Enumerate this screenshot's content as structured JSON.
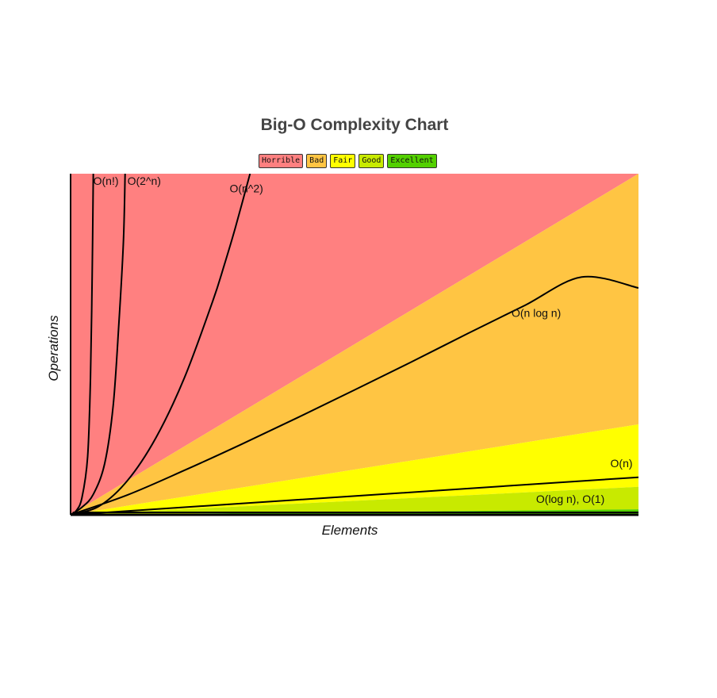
{
  "chart_data": {
    "type": "area",
    "title": "Big-O Complexity Chart",
    "xlabel": "Elements",
    "ylabel": "Operations",
    "xlim": [
      0,
      100
    ],
    "ylim": [
      0,
      1000
    ],
    "legend": {
      "placement": "top-center",
      "items": [
        {
          "name": "Horrible",
          "color": "#ff8080"
        },
        {
          "name": "Bad",
          "color": "#ffc543"
        },
        {
          "name": "Fair",
          "color": "#ffff00"
        },
        {
          "name": "Good",
          "color": "#c8ea00"
        },
        {
          "name": "Excellent",
          "color": "#53d000"
        }
      ]
    },
    "regions": [
      {
        "name": "Horrible",
        "color": "#ff8080",
        "top": [
          [
            0,
            0
          ],
          [
            0,
            1000
          ],
          [
            100,
            1000
          ]
        ],
        "bottom": [
          [
            0,
            0
          ],
          [
            100,
            1000
          ]
        ]
      },
      {
        "name": "Bad",
        "color": "#ffc543",
        "top": [
          [
            0,
            0
          ],
          [
            100,
            1000
          ]
        ],
        "bottom": [
          [
            0,
            0
          ],
          [
            100,
            265
          ]
        ]
      },
      {
        "name": "Fair",
        "color": "#ffff00",
        "top": [
          [
            0,
            0
          ],
          [
            100,
            265
          ]
        ],
        "bottom": [
          [
            0,
            0
          ],
          [
            100,
            82
          ]
        ]
      },
      {
        "name": "Good",
        "color": "#c8ea00",
        "top": [
          [
            0,
            0
          ],
          [
            100,
            82
          ]
        ],
        "bottom": [
          [
            0,
            0
          ],
          [
            100,
            16
          ]
        ]
      },
      {
        "name": "Excellent",
        "color": "#53d000",
        "top": [
          [
            0,
            0
          ],
          [
            100,
            16
          ]
        ],
        "bottom": [
          [
            0,
            0
          ],
          [
            100,
            0
          ]
        ]
      }
    ],
    "series": [
      {
        "name": "O(n!)",
        "label_at": [
          4,
          968
        ],
        "points": [
          [
            0,
            0
          ],
          [
            1,
            12
          ],
          [
            2,
            50
          ],
          [
            3,
            170
          ],
          [
            3.5,
            400
          ],
          [
            3.8,
            700
          ],
          [
            4,
            1000
          ]
        ]
      },
      {
        "name": "O(2^n)",
        "label_at": [
          10,
          968
        ],
        "points": [
          [
            0,
            0
          ],
          [
            2,
            22
          ],
          [
            4,
            60
          ],
          [
            6,
            150
          ],
          [
            7.5,
            320
          ],
          [
            8.5,
            560
          ],
          [
            9.3,
            800
          ],
          [
            9.6,
            1000
          ]
        ]
      },
      {
        "name": "O(n^2)",
        "label_at": [
          28,
          945
        ],
        "points": [
          [
            0,
            0
          ],
          [
            5,
            25
          ],
          [
            10,
            100
          ],
          [
            15,
            225
          ],
          [
            20,
            400
          ],
          [
            25,
            625
          ],
          [
            27,
            729
          ],
          [
            29,
            841
          ],
          [
            31.6,
            1000
          ]
        ]
      },
      {
        "name": "O(n log n)",
        "label_at": [
          82,
          580
        ],
        "points": [
          [
            0,
            0
          ],
          [
            10,
            58
          ],
          [
            20,
            130
          ],
          [
            30,
            206
          ],
          [
            40,
            285
          ],
          [
            50,
            366
          ],
          [
            60,
            448
          ],
          [
            70,
            532
          ],
          [
            80,
            614
          ],
          [
            90,
            697
          ],
          [
            100,
            665
          ]
        ]
      },
      {
        "name": "O(n)",
        "label_at": [
          97,
          140
        ],
        "points": [
          [
            0,
            0
          ],
          [
            100,
            110
          ]
        ]
      },
      {
        "name": "O(log n), O(1)",
        "label_at": [
          88,
          35
        ],
        "points": [
          [
            0,
            0
          ],
          [
            2,
            6
          ],
          [
            10,
            7
          ],
          [
            100,
            7
          ]
        ]
      }
    ]
  }
}
